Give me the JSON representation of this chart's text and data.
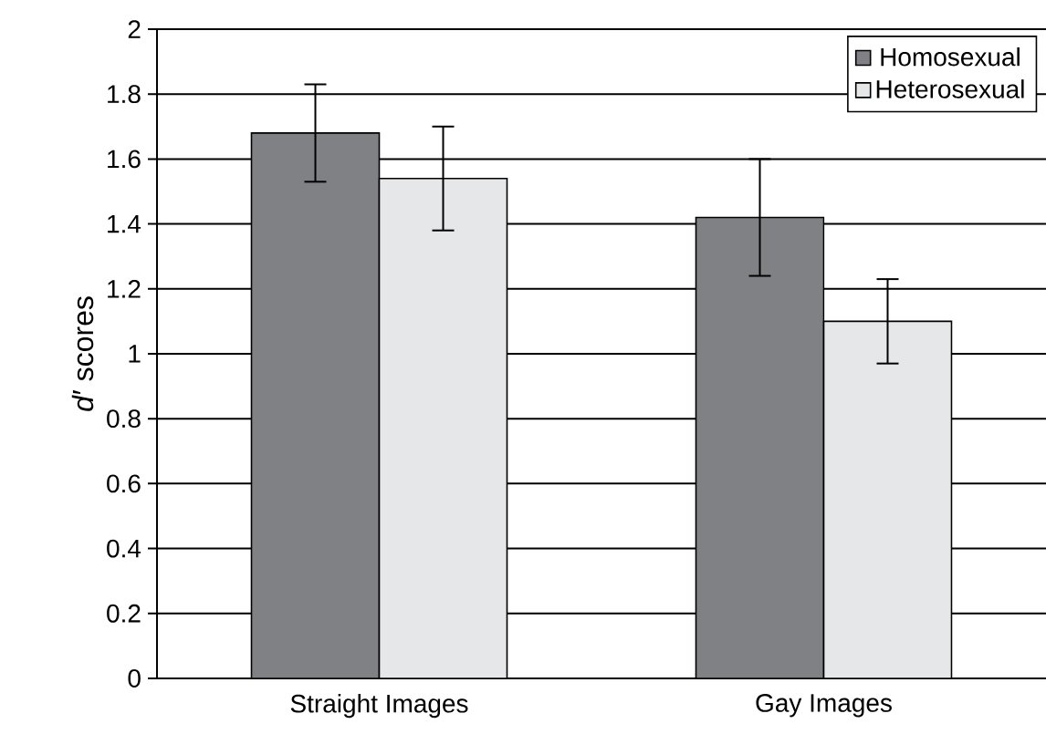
{
  "chart_data": {
    "type": "bar",
    "ylabel": "*d*′ scores",
    "categories": [
      "Straight Images",
      "Gay Images"
    ],
    "series": [
      {
        "name": "Homosexual",
        "color": "#808184",
        "values": [
          1.68,
          1.42
        ],
        "errors": [
          0.15,
          0.18
        ]
      },
      {
        "name": "Heterosexual",
        "color": "#e6e7e8",
        "values": [
          1.54,
          1.1
        ],
        "errors": [
          0.16,
          0.13
        ]
      }
    ],
    "ylim": [
      0,
      2
    ],
    "yticks": [
      0,
      0.2,
      0.4,
      0.6,
      0.8,
      1,
      1.2,
      1.4,
      1.6,
      1.8,
      2
    ],
    "grid": "y",
    "legend": "top right"
  }
}
